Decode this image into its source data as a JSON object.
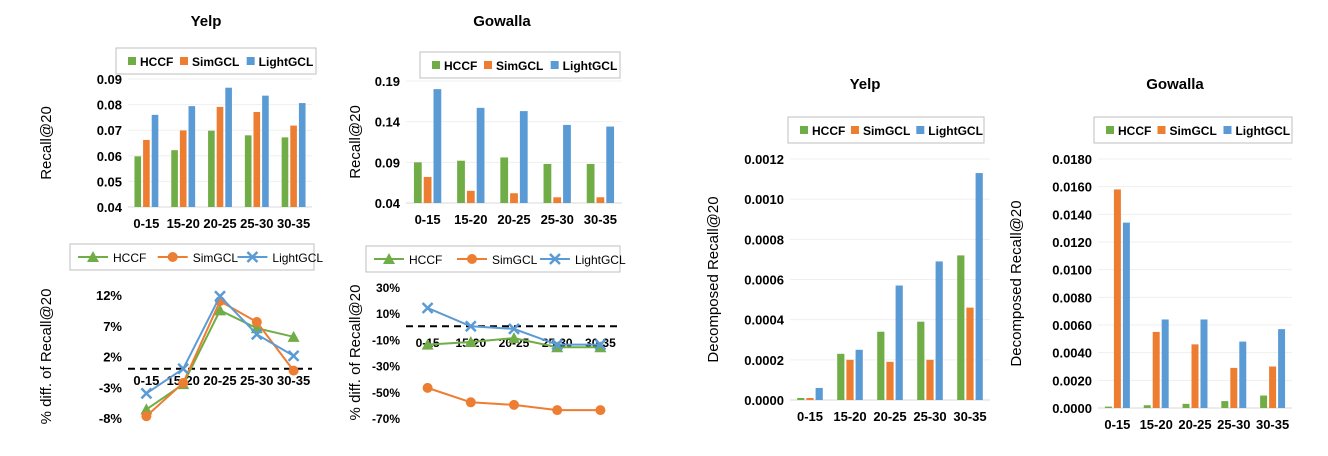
{
  "colors": {
    "HCCF": "#70ad47",
    "SimGCL": "#ed7d31",
    "LightGCL": "#5b9bd5",
    "axis": "#d9d9d9",
    "text": "#000000"
  },
  "legend_labels": [
    "HCCF",
    "SimGCL",
    "LightGCL"
  ],
  "chart_data": [
    {
      "id": "yelp-recall",
      "type": "bar",
      "title": "Yelp",
      "ylabel": "Recall@20",
      "categories": [
        "0-15",
        "15-20",
        "20-25",
        "25-30",
        "30-35"
      ],
      "ylim": [
        0.04,
        0.09
      ],
      "yticks": [
        "0.04",
        "0.05",
        "0.06",
        "0.07",
        "0.08",
        "0.09"
      ],
      "series": [
        {
          "name": "HCCF",
          "values": [
            0.0598,
            0.0622,
            0.0698,
            0.068,
            0.0672
          ]
        },
        {
          "name": "SimGCL",
          "values": [
            0.0662,
            0.0699,
            0.0791,
            0.0771,
            0.0718
          ]
        },
        {
          "name": "LightGCL",
          "values": [
            0.076,
            0.0794,
            0.0866,
            0.0835,
            0.0806
          ]
        }
      ]
    },
    {
      "id": "gowalla-recall",
      "type": "bar",
      "title": "Gowalla",
      "ylabel": "Recall@20",
      "categories": [
        "0-15",
        "15-20",
        "20-25",
        "25-30",
        "30-35"
      ],
      "ylim": [
        0.04,
        0.19
      ],
      "yticks": [
        "0.04",
        "0.09",
        "0.14",
        "0.19"
      ],
      "series": [
        {
          "name": "HCCF",
          "values": [
            0.09,
            0.092,
            0.096,
            0.088,
            0.088
          ]
        },
        {
          "name": "SimGCL",
          "values": [
            0.072,
            0.055,
            0.052,
            0.047,
            0.047
          ]
        },
        {
          "name": "LightGCL",
          "values": [
            0.18,
            0.157,
            0.153,
            0.136,
            0.134
          ]
        }
      ]
    },
    {
      "id": "yelp-diff",
      "type": "line",
      "ylabel": "% diff. of Recall@20",
      "categories": [
        "0-15",
        "15-20",
        "20-25",
        "25-30",
        "30-35"
      ],
      "ylim": [
        -8,
        12
      ],
      "baseline": 0,
      "yticks": [
        "-8%",
        "-3%",
        "2%",
        "7%",
        "12%"
      ],
      "series": [
        {
          "name": "HCCF",
          "values": [
            -6.6,
            -2.5,
            9.5,
            6.6,
            5.2
          ]
        },
        {
          "name": "SimGCL",
          "values": [
            -7.7,
            -2.3,
            11.0,
            7.6,
            -0.3
          ]
        },
        {
          "name": "LightGCL",
          "values": [
            -4.0,
            0.0,
            11.8,
            5.6,
            2.1
          ]
        }
      ]
    },
    {
      "id": "gowalla-diff",
      "type": "line",
      "ylabel": "% diff. of Recall@20",
      "categories": [
        "0-15",
        "15-20",
        "20-25",
        "25-30",
        "30-35"
      ],
      "ylim": [
        -70,
        30
      ],
      "baseline": 0,
      "yticks": [
        "-70%",
        "-50%",
        "-30%",
        "-10%",
        "10%",
        "30%"
      ],
      "series": [
        {
          "name": "HCCF",
          "values": [
            -14,
            -12,
            -9,
            -16,
            -16
          ]
        },
        {
          "name": "SimGCL",
          "values": [
            -47,
            -58,
            -60,
            -64,
            -64
          ]
        },
        {
          "name": "LightGCL",
          "values": [
            14,
            0,
            -2,
            -14,
            -14
          ]
        }
      ]
    },
    {
      "id": "yelp-decomposed",
      "type": "bar",
      "title": "Yelp",
      "ylabel": "Decomposed Recall@20",
      "categories": [
        "0-15",
        "15-20",
        "20-25",
        "25-30",
        "30-35"
      ],
      "ylim": [
        0,
        0.0012
      ],
      "yticks": [
        "0.0000",
        "0.0002",
        "0.0004",
        "0.0006",
        "0.0008",
        "0.0010",
        "0.0012"
      ],
      "series": [
        {
          "name": "HCCF",
          "values": [
            1e-05,
            0.00023,
            0.00034,
            0.00039,
            0.00072
          ]
        },
        {
          "name": "SimGCL",
          "values": [
            1e-05,
            0.0002,
            0.00019,
            0.0002,
            0.00046
          ]
        },
        {
          "name": "LightGCL",
          "values": [
            6e-05,
            0.00025,
            0.00057,
            0.00069,
            0.00113
          ]
        }
      ]
    },
    {
      "id": "gowalla-decomposed",
      "type": "bar",
      "title": "Gowalla",
      "ylabel": "Decomposed Recall@20",
      "categories": [
        "0-15",
        "15-20",
        "20-25",
        "25-30",
        "30-35"
      ],
      "ylim": [
        0,
        0.018
      ],
      "yticks": [
        "0.0000",
        "0.0020",
        "0.0040",
        "0.0060",
        "0.0080",
        "0.0100",
        "0.0120",
        "0.0140",
        "0.0160",
        "0.0180"
      ],
      "series": [
        {
          "name": "HCCF",
          "values": [
            0.0001,
            0.0002,
            0.0003,
            0.0005,
            0.0009
          ]
        },
        {
          "name": "SimGCL",
          "values": [
            0.0158,
            0.0055,
            0.0046,
            0.0029,
            0.003
          ]
        },
        {
          "name": "LightGCL",
          "values": [
            0.0134,
            0.0064,
            0.0064,
            0.0048,
            0.0057
          ]
        }
      ]
    }
  ]
}
